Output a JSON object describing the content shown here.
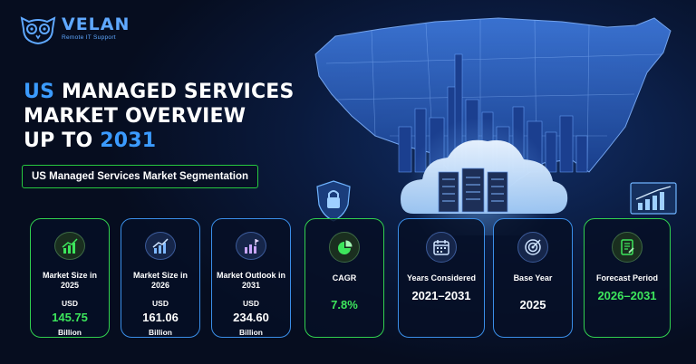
{
  "logo": {
    "name": "VELAN",
    "subtitle": "Remote IT Support"
  },
  "title": {
    "line1_accent": "US",
    "line1_rest": " MANAGED SERVICES",
    "line2": "MARKET OVERVIEW",
    "line3_rest": "UP TO ",
    "line3_accent": "2031"
  },
  "segmentation_label": "US Managed Services Market Segmentation",
  "colors": {
    "accent_blue": "#3b9bff",
    "accent_green": "#3de65c",
    "background": "#060d1f"
  },
  "cards": [
    {
      "icon": "growth-chart-icon",
      "label": "Market Size in 2025",
      "unit": "USD",
      "value": "145.75",
      "suffix": "Billion",
      "style": "green"
    },
    {
      "icon": "growth-chart-icon",
      "label": "Market Size in 2026",
      "unit": "USD",
      "value": "161.06",
      "suffix": "Billion",
      "style": "blue"
    },
    {
      "icon": "flag-chart-icon",
      "label": "Market Outlook in 2031",
      "unit": "USD",
      "value": "234.60",
      "suffix": "Billion",
      "style": "blue"
    },
    {
      "icon": "pie-chart-icon",
      "label": "CAGR",
      "value": "7.8%",
      "style": "green"
    },
    {
      "icon": "calendar-icon",
      "label": "Years Considered",
      "value": "2021–2031",
      "style": "blue"
    },
    {
      "icon": "target-icon",
      "label": "Base Year",
      "value": "2025",
      "style": "blue"
    },
    {
      "icon": "report-icon",
      "label": "Forecast Period",
      "value": "2026–2031",
      "style": "green"
    }
  ]
}
